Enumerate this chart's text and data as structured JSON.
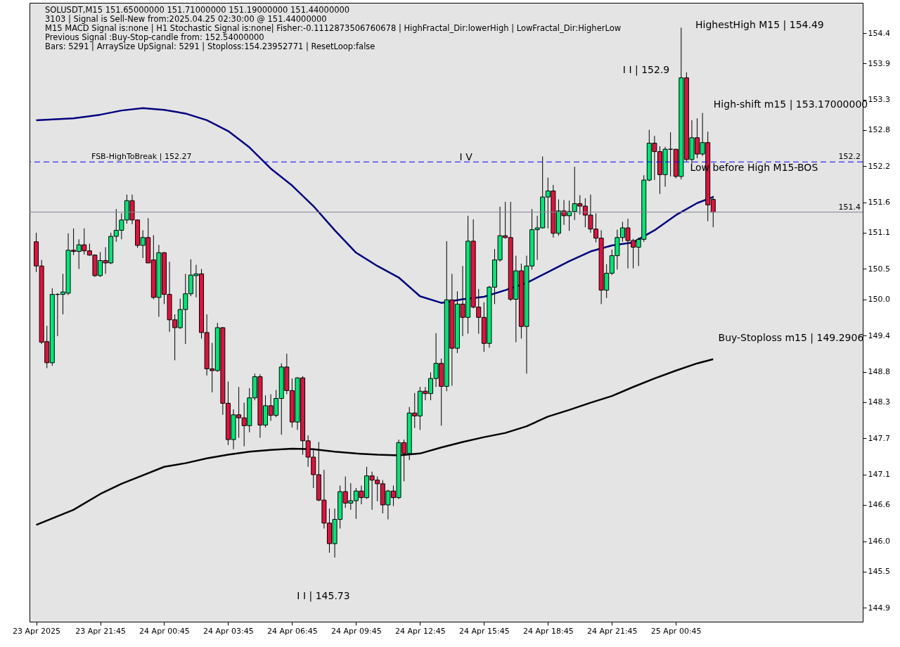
{
  "chart_data": {
    "type": "candlestick",
    "x": [
      "2025-04-23T18:45",
      "2025-04-23T19:00",
      "2025-04-23T19:15",
      "2025-04-23T19:30",
      "2025-04-23T19:45",
      "2025-04-23T20:00",
      "2025-04-23T20:15",
      "2025-04-23T20:30",
      "2025-04-23T20:45",
      "2025-04-23T21:00",
      "2025-04-23T21:15",
      "2025-04-23T21:30",
      "2025-04-23T21:45",
      "2025-04-23T22:00",
      "2025-04-23T22:15",
      "2025-04-23T22:30",
      "2025-04-23T22:45",
      "2025-04-23T23:00",
      "2025-04-23T23:15",
      "2025-04-23T23:30",
      "2025-04-23T23:45",
      "2025-04-24T00:00",
      "2025-04-24T00:15",
      "2025-04-24T00:30",
      "2025-04-24T00:45",
      "2025-04-24T01:00",
      "2025-04-24T01:15",
      "2025-04-24T01:30",
      "2025-04-24T01:45",
      "2025-04-24T02:00",
      "2025-04-24T02:15",
      "2025-04-24T02:30",
      "2025-04-24T02:45",
      "2025-04-24T03:00",
      "2025-04-24T03:15",
      "2025-04-24T03:30",
      "2025-04-24T03:45",
      "2025-04-24T04:00",
      "2025-04-24T04:15",
      "2025-04-24T04:30",
      "2025-04-24T04:45",
      "2025-04-24T05:00",
      "2025-04-24T05:15",
      "2025-04-24T05:30",
      "2025-04-24T05:45",
      "2025-04-24T06:00",
      "2025-04-24T06:15",
      "2025-04-24T06:30",
      "2025-04-24T06:45",
      "2025-04-24T07:00",
      "2025-04-24T07:15",
      "2025-04-24T07:30",
      "2025-04-24T07:45",
      "2025-04-24T08:00",
      "2025-04-24T08:15",
      "2025-04-24T08:30",
      "2025-04-24T08:45",
      "2025-04-24T09:00",
      "2025-04-24T09:15",
      "2025-04-24T09:30",
      "2025-04-24T09:45",
      "2025-04-24T10:00",
      "2025-04-24T10:15",
      "2025-04-24T10:30",
      "2025-04-24T10:45",
      "2025-04-24T11:00",
      "2025-04-24T11:15",
      "2025-04-24T11:30",
      "2025-04-24T11:45",
      "2025-04-24T12:00",
      "2025-04-24T12:15",
      "2025-04-24T12:30",
      "2025-04-24T12:45",
      "2025-04-24T13:00",
      "2025-04-24T13:15",
      "2025-04-24T13:30",
      "2025-04-24T13:45",
      "2025-04-24T14:00",
      "2025-04-24T14:15",
      "2025-04-24T14:30",
      "2025-04-24T14:45",
      "2025-04-24T15:00",
      "2025-04-24T15:15",
      "2025-04-24T15:30",
      "2025-04-24T15:45",
      "2025-04-24T16:00",
      "2025-04-24T16:15",
      "2025-04-24T16:30",
      "2025-04-24T16:45",
      "2025-04-24T17:00",
      "2025-04-24T17:15",
      "2025-04-24T17:30",
      "2025-04-24T17:45",
      "2025-04-24T18:00",
      "2025-04-24T18:15",
      "2025-04-24T18:30",
      "2025-04-24T18:45",
      "2025-04-24T19:00",
      "2025-04-24T19:15",
      "2025-04-24T19:30",
      "2025-04-24T19:45",
      "2025-04-24T20:00",
      "2025-04-24T20:15",
      "2025-04-24T20:30",
      "2025-04-24T20:45",
      "2025-04-24T21:00",
      "2025-04-24T21:15",
      "2025-04-24T21:30",
      "2025-04-24T21:45",
      "2025-04-24T22:00",
      "2025-04-24T22:15",
      "2025-04-24T22:30",
      "2025-04-24T22:45",
      "2025-04-24T23:00",
      "2025-04-24T23:15",
      "2025-04-24T23:30",
      "2025-04-24T23:45",
      "2025-04-25T00:00",
      "2025-04-25T00:15",
      "2025-04-25T00:30",
      "2025-04-25T00:45",
      "2025-04-25T01:00",
      "2025-04-25T01:15",
      "2025-04-25T01:30",
      "2025-04-25T01:45",
      "2025-04-25T02:00",
      "2025-04-25T02:15",
      "2025-04-25T02:30"
    ],
    "ohlc": [
      [
        150.95,
        151.1,
        150.45,
        150.55
      ],
      [
        150.55,
        150.65,
        149.26,
        149.29
      ],
      [
        149.3,
        149.56,
        148.86,
        148.95
      ],
      [
        148.95,
        150.18,
        148.9,
        150.08
      ],
      [
        150.08,
        150.1,
        149.39,
        150.08
      ],
      [
        150.08,
        150.42,
        149.75,
        150.12
      ],
      [
        150.1,
        151.09,
        150.07,
        150.81
      ],
      [
        150.81,
        151.17,
        150.73,
        150.79
      ],
      [
        150.79,
        150.99,
        150.5,
        150.9
      ],
      [
        150.9,
        151.17,
        150.74,
        150.8
      ],
      [
        150.8,
        150.92,
        150.72,
        150.73
      ],
      [
        150.73,
        150.74,
        150.37,
        150.39
      ],
      [
        150.39,
        150.78,
        150.37,
        150.64
      ],
      [
        150.64,
        150.86,
        150.42,
        150.6
      ],
      [
        150.6,
        151.1,
        150.58,
        151.04
      ],
      [
        151.04,
        151.49,
        150.95,
        151.14
      ],
      [
        151.14,
        151.42,
        150.99,
        151.31
      ],
      [
        151.31,
        151.73,
        151.25,
        151.63
      ],
      [
        151.63,
        151.73,
        151.24,
        151.31
      ],
      [
        151.31,
        151.32,
        150.85,
        150.89
      ],
      [
        150.89,
        151.14,
        150.68,
        151.02
      ],
      [
        151.02,
        151.34,
        150.6,
        150.6
      ],
      [
        150.65,
        151.06,
        150.0,
        150.03
      ],
      [
        150.03,
        150.9,
        149.71,
        150.77
      ],
      [
        150.77,
        150.78,
        149.92,
        150.08
      ],
      [
        150.08,
        150.62,
        149.46,
        149.66
      ],
      [
        149.66,
        149.75,
        148.99,
        149.53
      ],
      [
        149.53,
        150.01,
        149.51,
        149.83
      ],
      [
        149.83,
        150.42,
        149.26,
        150.09
      ],
      [
        150.09,
        150.66,
        150.05,
        150.4
      ],
      [
        150.39,
        150.57,
        150.03,
        150.42
      ],
      [
        150.42,
        150.5,
        149.35,
        149.45
      ],
      [
        149.45,
        149.75,
        148.74,
        148.85
      ],
      [
        148.85,
        149.28,
        148.46,
        148.82
      ],
      [
        148.82,
        149.61,
        148.8,
        149.53
      ],
      [
        149.53,
        149.54,
        148.09,
        148.28
      ],
      [
        148.28,
        148.64,
        147.59,
        147.68
      ],
      [
        147.68,
        148.18,
        147.52,
        148.09
      ],
      [
        148.09,
        148.55,
        147.71,
        148.04
      ],
      [
        148.04,
        148.29,
        147.57,
        147.91
      ],
      [
        147.91,
        148.53,
        147.8,
        148.37
      ],
      [
        148.37,
        148.77,
        148.33,
        148.72
      ],
      [
        148.72,
        148.76,
        147.71,
        147.92
      ],
      [
        147.92,
        148.41,
        147.88,
        148.24
      ],
      [
        148.24,
        148.43,
        147.99,
        148.08
      ],
      [
        148.08,
        148.5,
        148.05,
        148.36
      ],
      [
        148.36,
        148.94,
        147.76,
        148.88
      ],
      [
        148.88,
        149.1,
        148.43,
        148.49
      ],
      [
        148.49,
        148.69,
        147.88,
        147.97
      ],
      [
        147.97,
        148.71,
        147.84,
        148.7
      ],
      [
        148.7,
        148.73,
        147.43,
        147.66
      ],
      [
        147.66,
        147.75,
        147.23,
        147.39
      ],
      [
        147.39,
        147.52,
        146.88,
        147.1
      ],
      [
        147.1,
        147.64,
        146.66,
        146.68
      ],
      [
        146.68,
        147.18,
        146.21,
        146.3
      ],
      [
        146.3,
        146.54,
        145.81,
        145.96
      ],
      [
        145.96,
        146.54,
        145.73,
        146.36
      ],
      [
        146.36,
        146.92,
        146.21,
        146.82
      ],
      [
        146.82,
        147.07,
        146.55,
        146.63
      ],
      [
        146.63,
        146.96,
        146.52,
        146.67
      ],
      [
        146.67,
        146.88,
        146.37,
        146.83
      ],
      [
        146.83,
        146.92,
        146.61,
        146.72
      ],
      [
        146.72,
        147.23,
        146.7,
        147.08
      ],
      [
        147.08,
        147.15,
        146.52,
        147.01
      ],
      [
        147.01,
        147.07,
        146.66,
        146.95
      ],
      [
        146.95,
        147.01,
        146.46,
        146.6
      ],
      [
        146.6,
        146.85,
        146.36,
        146.83
      ],
      [
        146.83,
        146.92,
        146.58,
        146.72
      ],
      [
        146.72,
        147.68,
        146.7,
        147.63
      ],
      [
        147.63,
        147.68,
        146.99,
        147.45
      ],
      [
        147.45,
        148.22,
        147.34,
        148.12
      ],
      [
        148.12,
        148.45,
        147.87,
        148.07
      ],
      [
        148.07,
        148.55,
        147.84,
        148.48
      ],
      [
        148.48,
        148.55,
        148.33,
        148.44
      ],
      [
        148.44,
        148.79,
        148.33,
        148.69
      ],
      [
        148.69,
        149.44,
        148.55,
        148.94
      ],
      [
        148.94,
        149.02,
        147.91,
        148.56
      ],
      [
        148.56,
        150.96,
        148.48,
        149.99
      ],
      [
        149.99,
        150.42,
        148.57,
        149.19
      ],
      [
        149.19,
        150.13,
        149.11,
        149.92
      ],
      [
        149.92,
        150.55,
        149.39,
        149.7
      ],
      [
        149.7,
        151.38,
        149.43,
        150.96
      ],
      [
        150.96,
        151.32,
        149.85,
        149.87
      ],
      [
        149.87,
        150.17,
        149.43,
        149.7
      ],
      [
        149.7,
        149.95,
        149.13,
        149.27
      ],
      [
        149.27,
        150.22,
        149.2,
        150.2
      ],
      [
        150.2,
        150.83,
        149.92,
        150.65
      ],
      [
        150.65,
        151.53,
        150.62,
        151.05
      ],
      [
        151.05,
        151.61,
        151.0,
        151.02
      ],
      [
        151.02,
        151.61,
        149.97,
        150.0
      ],
      [
        150.0,
        150.72,
        149.29,
        150.47
      ],
      [
        150.47,
        150.59,
        149.35,
        149.55
      ],
      [
        149.55,
        150.72,
        148.77,
        150.55
      ],
      [
        150.55,
        151.49,
        150.49,
        151.15
      ],
      [
        151.15,
        151.38,
        150.65,
        151.18
      ],
      [
        151.18,
        152.36,
        151.17,
        151.69
      ],
      [
        151.69,
        152.01,
        151.17,
        151.79
      ],
      [
        151.79,
        151.89,
        151.02,
        151.09
      ],
      [
        151.09,
        151.65,
        151.05,
        151.46
      ],
      [
        151.46,
        151.64,
        151.23,
        151.38
      ],
      [
        151.38,
        151.63,
        151.13,
        151.45
      ],
      [
        151.45,
        152.19,
        151.31,
        151.58
      ],
      [
        151.58,
        151.72,
        151.4,
        151.54
      ],
      [
        151.54,
        151.67,
        151.19,
        151.39
      ],
      [
        151.39,
        151.73,
        151.1,
        151.16
      ],
      [
        151.16,
        151.42,
        150.94,
        151.01
      ],
      [
        151.01,
        151.14,
        149.92,
        150.15
      ],
      [
        150.15,
        150.58,
        150.02,
        150.43
      ],
      [
        150.43,
        150.82,
        150.4,
        150.72
      ],
      [
        150.72,
        151.15,
        150.49,
        151.02
      ],
      [
        151.02,
        151.28,
        150.95,
        151.18
      ],
      [
        151.18,
        151.33,
        150.51,
        150.97
      ],
      [
        150.97,
        151.0,
        150.51,
        150.86
      ],
      [
        150.86,
        151.02,
        150.55,
        150.99
      ],
      [
        150.99,
        152.05,
        150.95,
        151.97
      ],
      [
        151.97,
        152.8,
        151.95,
        152.58
      ],
      [
        152.58,
        152.7,
        151.97,
        152.44
      ],
      [
        152.44,
        152.53,
        151.74,
        152.06
      ],
      [
        152.06,
        152.52,
        151.86,
        152.48
      ],
      [
        152.48,
        152.76,
        152.03,
        152.48
      ],
      [
        152.48,
        152.48,
        152.0,
        152.03
      ],
      [
        152.03,
        154.49,
        151.98,
        153.66
      ],
      [
        153.66,
        153.75,
        152.28,
        152.31
      ],
      [
        152.31,
        152.96,
        152.24,
        152.67
      ],
      [
        152.67,
        152.99,
        152.33,
        152.4
      ],
      [
        152.4,
        153.08,
        152.37,
        152.59
      ],
      [
        152.59,
        152.77,
        151.29,
        151.56
      ],
      [
        151.65,
        151.71,
        151.19,
        151.44
      ]
    ],
    "series": [
      {
        "type": "line",
        "color": "#00007f",
        "x": [
          "2025-04-23T18:45",
          "2025-04-23T20:30",
          "2025-04-23T21:45",
          "2025-04-23T22:45",
          "2025-04-23T23:45",
          "2025-04-24T00:45",
          "2025-04-24T01:45",
          "2025-04-24T02:45",
          "2025-04-24T03:45",
          "2025-04-24T04:45",
          "2025-04-24T05:45",
          "2025-04-24T06:45",
          "2025-04-24T07:45",
          "2025-04-24T08:45",
          "2025-04-24T09:45",
          "2025-04-24T10:45",
          "2025-04-24T11:45",
          "2025-04-24T12:45",
          "2025-04-24T13:45",
          "2025-04-24T14:45",
          "2025-04-24T15:45",
          "2025-04-24T16:45",
          "2025-04-24T17:45",
          "2025-04-24T18:45",
          "2025-04-24T19:45",
          "2025-04-24T20:45",
          "2025-04-24T21:45",
          "2025-04-24T22:45",
          "2025-04-24T23:45",
          "2025-04-25T00:45",
          "2025-04-25T01:45",
          "2025-04-25T02:30"
        ],
        "values": [
          152.96,
          152.99,
          153.05,
          153.12,
          153.16,
          153.13,
          153.07,
          152.96,
          152.78,
          152.51,
          152.16,
          151.88,
          151.54,
          151.14,
          150.77,
          150.55,
          150.36,
          150.05,
          149.94,
          150.0,
          150.04,
          150.15,
          150.27,
          150.45,
          150.63,
          150.79,
          150.89,
          150.94,
          151.14,
          151.39,
          151.59,
          151.69
        ]
      },
      {
        "type": "line",
        "color": "#000000",
        "x": [
          "2025-04-23T18:45",
          "2025-04-23T20:30",
          "2025-04-23T21:45",
          "2025-04-23T22:45",
          "2025-04-23T23:45",
          "2025-04-24T00:45",
          "2025-04-24T01:45",
          "2025-04-24T02:45",
          "2025-04-24T03:45",
          "2025-04-24T04:45",
          "2025-04-24T05:45",
          "2025-04-24T06:45",
          "2025-04-24T07:45",
          "2025-04-24T08:45",
          "2025-04-24T09:45",
          "2025-04-24T10:45",
          "2025-04-24T11:45",
          "2025-04-24T12:45",
          "2025-04-24T13:45",
          "2025-04-24T14:45",
          "2025-04-24T15:45",
          "2025-04-24T16:45",
          "2025-04-24T17:45",
          "2025-04-24T18:45",
          "2025-04-24T19:45",
          "2025-04-24T20:45",
          "2025-04-24T21:45",
          "2025-04-24T22:45",
          "2025-04-24T23:45",
          "2025-04-25T00:45",
          "2025-04-25T01:45",
          "2025-04-25T02:30"
        ],
        "values": [
          146.27,
          146.52,
          146.78,
          146.95,
          147.09,
          147.23,
          147.29,
          147.37,
          147.43,
          147.48,
          147.51,
          147.53,
          147.52,
          147.48,
          147.45,
          147.43,
          147.42,
          147.45,
          147.55,
          147.64,
          147.72,
          147.79,
          147.9,
          148.06,
          148.17,
          148.29,
          148.4,
          148.55,
          148.69,
          148.82,
          148.94,
          149.01
        ]
      }
    ],
    "xlim": [
      "2025-04-23T18:36",
      "2025-04-25T09:21"
    ],
    "xticks": [
      {
        "value": "2025-04-23T18:45",
        "label": "23 Apr 2025"
      },
      {
        "value": "2025-04-23T21:45",
        "label": "23 Apr 21:45"
      },
      {
        "value": "2025-04-24T00:45",
        "label": "24 Apr 00:45"
      },
      {
        "value": "2025-04-24T03:45",
        "label": "24 Apr 03:45"
      },
      {
        "value": "2025-04-24T06:45",
        "label": "24 Apr 06:45"
      },
      {
        "value": "2025-04-24T09:45",
        "label": "24 Apr 09:45"
      },
      {
        "value": "2025-04-24T12:45",
        "label": "24 Apr 12:45"
      },
      {
        "value": "2025-04-24T15:45",
        "label": "24 Apr 15:45"
      },
      {
        "value": "2025-04-24T18:45",
        "label": "24 Apr 18:45"
      },
      {
        "value": "2025-04-24T21:45",
        "label": "24 Apr 21:45"
      },
      {
        "value": "2025-04-25T00:45",
        "label": "25 Apr 00:45"
      }
    ],
    "ylim": [
      144.67,
      154.9
    ],
    "yticks": [
      154.4,
      153.9,
      153.3,
      152.8,
      152.2,
      151.6,
      151.1,
      150.5,
      {
        "value": 150,
        "label": "150.0"
      },
      149.4,
      148.8,
      148.3,
      147.7,
      147.1,
      146.6,
      {
        "value": 146,
        "label": "146.0"
      },
      145.5,
      144.9
    ],
    "ref_lines": [
      {
        "axis": "y",
        "value": 152.27,
        "label": "FSB-HighToBreak | 152.27",
        "color": "#0000ff",
        "line_style": "dashed"
      },
      {
        "axis": "y",
        "value": 151.44,
        "color": "#7f8590",
        "line_style": "solid"
      }
    ],
    "annotations": [
      "SOLUSDT,M15  151.65000000 151.71000000 151.19000000 151.44000000",
      "3103 | Signal is Sell-New from:2025.04.25 02:30:00 @ 151.44000000",
      "M15 MACD Signal is:none | H1 Stochastic Signal is:none| Fisher:-0.1112873506760678 | HighFractal_Dir:lowerHigh | LowFractal_Dir:HigherLow",
      "Previous Signal :Buy-Stop-candle from: 152.54000000",
      "Bars: 5291 | ArraySize UpSignal: 5291 | Stoploss:154.23952771 | ResetLoop:false",
      "HighestHigh    M15 | 154.49",
      "I I | 152.9",
      "High-shift m15 | 153.17000000",
      "I V",
      "Low before High   M15-BOS",
      "Buy-Stoploss m15 | 149.2906",
      "I I | 145.73",
      {
        "text": "152.2",
        "y": 152.27
      },
      {
        "text": "151.4",
        "y": 151.44
      }
    ]
  }
}
